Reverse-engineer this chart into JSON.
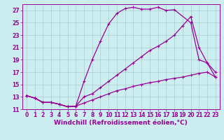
{
  "xlabel": "Windchill (Refroidissement éolien,°C)",
  "background_color": "#cceef0",
  "line_color": "#990099",
  "grid_color": "#aaccd0",
  "xlim": [
    -0.5,
    23.5
  ],
  "ylim": [
    11,
    28
  ],
  "xticks": [
    0,
    1,
    2,
    3,
    4,
    5,
    6,
    7,
    8,
    9,
    10,
    11,
    12,
    13,
    14,
    15,
    16,
    17,
    18,
    19,
    20,
    21,
    22,
    23
  ],
  "yticks": [
    11,
    13,
    15,
    17,
    19,
    21,
    23,
    25,
    27
  ],
  "curve1_x": [
    0,
    1,
    2,
    3,
    4,
    5,
    6,
    7,
    8,
    9,
    10,
    11,
    12,
    13,
    14,
    15,
    16,
    17,
    18,
    20,
    21,
    22,
    23
  ],
  "curve1_y": [
    13.2,
    12.8,
    12.1,
    12.1,
    11.8,
    11.4,
    11.5,
    15.5,
    19.0,
    22.0,
    24.8,
    26.5,
    27.3,
    27.5,
    27.2,
    27.2,
    27.5,
    27.0,
    27.1,
    25.0,
    19.0,
    18.5,
    16.2
  ],
  "curve2_x": [
    0,
    1,
    2,
    3,
    4,
    5,
    6,
    7,
    8,
    9,
    10,
    11,
    12,
    13,
    14,
    15,
    16,
    17,
    18,
    19,
    20,
    21,
    22,
    23
  ],
  "curve2_y": [
    13.2,
    12.8,
    12.1,
    12.1,
    11.8,
    11.4,
    11.5,
    13.0,
    13.5,
    14.5,
    15.5,
    16.5,
    17.5,
    18.5,
    19.5,
    20.5,
    21.2,
    22.0,
    23.0,
    24.5,
    26.0,
    21.0,
    18.5,
    17.0
  ],
  "curve3_x": [
    0,
    1,
    2,
    3,
    4,
    5,
    6,
    7,
    8,
    9,
    10,
    11,
    12,
    13,
    14,
    15,
    16,
    17,
    18,
    19,
    20,
    21,
    22,
    23
  ],
  "curve3_y": [
    13.2,
    12.8,
    12.1,
    12.1,
    11.8,
    11.4,
    11.5,
    12.0,
    12.5,
    13.0,
    13.5,
    14.0,
    14.3,
    14.7,
    15.0,
    15.3,
    15.5,
    15.8,
    16.0,
    16.2,
    16.5,
    16.8,
    17.0,
    16.2
  ],
  "markersize": 2.5,
  "linewidth": 0.9,
  "tick_fontsize": 5.5,
  "label_fontsize": 6.5
}
